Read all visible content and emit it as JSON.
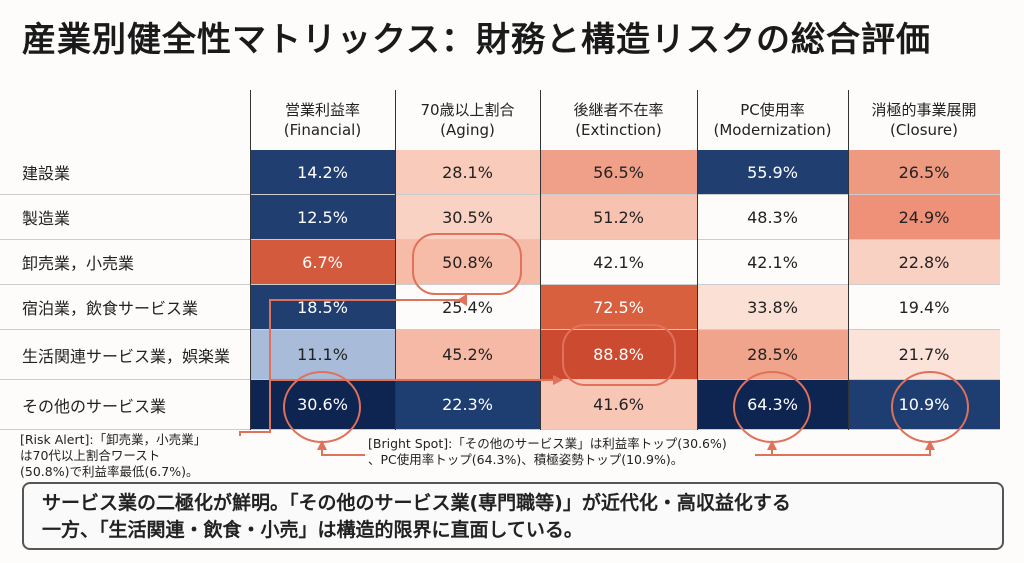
{
  "title": "産業別健全性マトリックス：財務と構造リスクの総合評価",
  "chart_data": {
    "type": "heatmap",
    "columns": [
      {
        "name": "営業利益率",
        "sub": "(Financial)"
      },
      {
        "name": "70歳以上割合",
        "sub": "(Aging)"
      },
      {
        "name": "後継者不在率",
        "sub": "(Extinction)"
      },
      {
        "name": "PC使用率",
        "sub": "(Modernization)"
      },
      {
        "name": "消極的事業展開",
        "sub": "(Closure)"
      }
    ],
    "rows": [
      {
        "label": "建設業",
        "values": [
          "14.2%",
          "28.1%",
          "56.5%",
          "55.9%",
          "26.5%"
        ],
        "colors": [
          "#203f70",
          "#f8cbbb",
          "#f0a088",
          "#203f70",
          "#ee9a80"
        ]
      },
      {
        "label": "製造業",
        "values": [
          "12.5%",
          "30.5%",
          "51.2%",
          "48.3%",
          "24.9%"
        ],
        "colors": [
          "#203f70",
          "#f9d2c3",
          "#f7c2b0",
          "#fdfcfa",
          "#ee9178"
        ]
      },
      {
        "label": "卸売業，小売業",
        "values": [
          "6.7%",
          "50.8%",
          "42.1%",
          "42.1%",
          "22.8%"
        ],
        "colors": [
          "#d45a3e",
          "#f6bca8",
          "#fdfcfa",
          "#fdfcfa",
          "#f9d1c2"
        ]
      },
      {
        "label": "宿泊業，飲食サービス業",
        "values": [
          "18.5%",
          "25.4%",
          "72.5%",
          "33.8%",
          "19.4%"
        ],
        "colors": [
          "#203f70",
          "#fdfcfa",
          "#d9603f",
          "#fae0d5",
          "#fdfcfa"
        ]
      },
      {
        "label": "生活関連サービス業，娯楽業",
        "values": [
          "11.1%",
          "45.2%",
          "88.8%",
          "28.5%",
          "21.7%"
        ],
        "colors": [
          "#a8bbd9",
          "#f5b9a5",
          "#cc4a30",
          "#f0a48c",
          "#fbe3da"
        ]
      },
      {
        "label": "その他のサービス業",
        "values": [
          "30.6%",
          "22.3%",
          "41.6%",
          "64.3%",
          "10.9%"
        ],
        "colors": [
          "#0f2551",
          "#1e3e72",
          "#f8c6b5",
          "#0f2551",
          "#1e3e72"
        ]
      }
    ]
  },
  "annotations": {
    "risk_alert": [
      "[Risk Alert]:「卸売業，小売業」",
      "は70代以上割合ワースト",
      "(50.8%)で利益率最低(6.7%)。"
    ],
    "bright_spot": [
      "[Bright Spot]:「その他のサービス業」は利益率トップ(30.6%)",
      "、PC使用率トップ(64.3%)、積極姿勢トップ(10.9%)。"
    ],
    "accent": "#e0715a"
  },
  "footer": [
    "サービス業の二極化が鮮明。「その他のサービス業(専門職等)」が近代化・高収益化する",
    "一方、「生活関連・飲食・小売」は構造的限界に直面している。"
  ]
}
